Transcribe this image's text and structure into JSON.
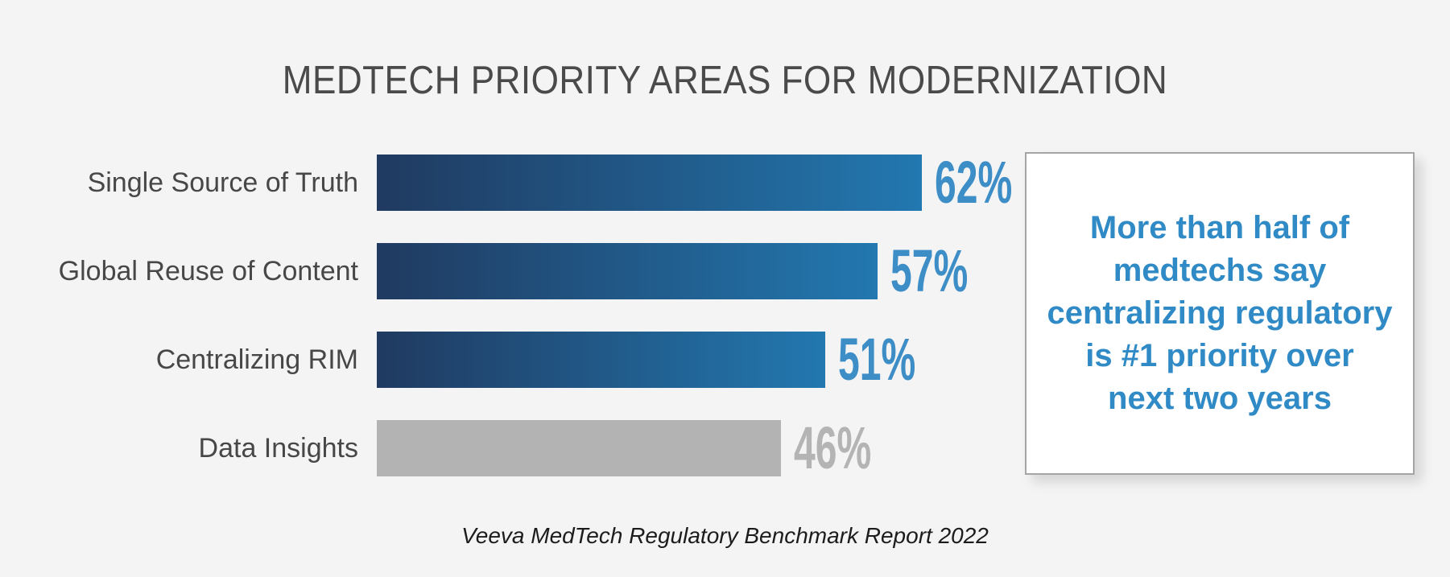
{
  "title": "MEDTECH PRIORITY AREAS FOR MODERNIZATION",
  "chart_data": {
    "type": "bar",
    "orientation": "horizontal",
    "title": "MEDTECH PRIORITY AREAS FOR MODERNIZATION",
    "categories": [
      "Single Source of Truth",
      "Global Reuse of Content",
      "Centralizing RIM",
      "Data Insights"
    ],
    "values": [
      62,
      57,
      51,
      46
    ],
    "value_labels": [
      "62%",
      "57%",
      "51%",
      "46%"
    ],
    "unit": "%",
    "xlim": [
      0,
      100
    ],
    "axes_visible": false,
    "grid": false,
    "legend": false,
    "muted_category": "Data Insights"
  },
  "callout": {
    "text": "More than half of medtechs say centralizing regulatory is #1 priority over next two years",
    "lines": [
      "More than half of",
      "medtechs say",
      "centralizing regulatory",
      "is #1 priority over",
      "next two years"
    ]
  },
  "source": "Veeva MedTech Regulatory Benchmark Report 2022",
  "colors": {
    "background": "#f4f4f4",
    "title_text": "#4a4a4a",
    "label_text": "#474747",
    "bar_gradient_start": "#203a60",
    "bar_gradient_end": "#2278b0",
    "bar_muted": "#b3b3b3",
    "value_blue": "#3d8dc6",
    "value_muted": "#b4b4b4",
    "callout_text": "#2f8ac5",
    "callout_border": "#a5a5a5",
    "source_text": "#1c1c1c"
  }
}
